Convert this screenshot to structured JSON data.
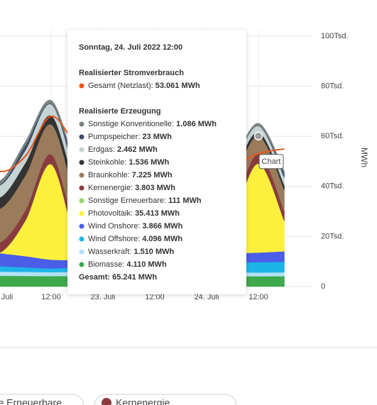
{
  "chart_data": {
    "type": "area",
    "stacked": true,
    "categories": [
      null,
      "Juli",
      null,
      "12:00",
      null,
      "23. Juli",
      null,
      "12:00",
      null,
      "24. Juli",
      null,
      "12:00",
      null
    ],
    "ylim": [
      0,
      100000
    ],
    "yticks": [
      {
        "value": 0,
        "label": "0"
      },
      {
        "value": 20000,
        "label": "20Tsd."
      },
      {
        "value": 40000,
        "label": "40Tsd."
      },
      {
        "value": 60000,
        "label": "60Tsd."
      },
      {
        "value": 80000,
        "label": "80Tsd."
      },
      {
        "value": 100000,
        "label": "100Tsd."
      }
    ],
    "y_label": "MWh",
    "grid": true,
    "hover_index": 11,
    "hover_label": "Chart",
    "tooltip_title": "Sonntag, 24. Juli 2022 12:00",
    "consumption_heading": "Realisierter Stromverbrauch",
    "generation_heading": "Realisierte Erzeugung",
    "total": {
      "value": 65241,
      "label": "Gesamt: 65.241 MWh"
    },
    "series": [
      {
        "name": "Gesamt (Netzlast)",
        "type": "line",
        "color": "#e8561c",
        "values": [
          56000,
          46000,
          52000,
          68000,
          56000,
          48000,
          50000,
          60000,
          54000,
          45000,
          48000,
          53061,
          55000
        ],
        "value_labels": [
          null,
          null,
          null,
          null,
          null,
          null,
          null,
          null,
          null,
          null,
          null,
          "53.061 MWh",
          null
        ]
      },
      {
        "name": "Sonstige Konventionelle",
        "color": "#7b8281",
        "values": [
          1500,
          1500,
          1500,
          1400,
          1500,
          1400,
          1300,
          1200,
          1200,
          1200,
          1200,
          1086,
          1200
        ],
        "value_labels": [
          null,
          null,
          null,
          null,
          null,
          null,
          null,
          null,
          null,
          null,
          null,
          "1.086 MWh",
          null
        ]
      },
      {
        "name": "Pumpspeicher",
        "color": "#3b4a68",
        "values": [
          500,
          300,
          2000,
          200,
          2500,
          500,
          300,
          100,
          1500,
          500,
          200,
          23,
          1500
        ],
        "value_labels": [
          null,
          null,
          null,
          null,
          null,
          null,
          null,
          null,
          null,
          null,
          null,
          "23 MWh",
          null
        ]
      },
      {
        "name": "Erdgas",
        "color": "#c5d3d3",
        "values": [
          5000,
          4800,
          5000,
          4500,
          4800,
          4600,
          4000,
          3000,
          3200,
          3300,
          3200,
          2462,
          3000
        ],
        "value_labels": [
          null,
          null,
          null,
          null,
          null,
          null,
          null,
          null,
          null,
          null,
          null,
          "2.462 MWh",
          null
        ]
      },
      {
        "name": "Steinkohle",
        "color": "#333333",
        "values": [
          5000,
          4500,
          5000,
          3500,
          4500,
          4000,
          3000,
          2000,
          2500,
          2500,
          2500,
          1536,
          2000
        ],
        "value_labels": [
          null,
          null,
          null,
          null,
          null,
          null,
          null,
          null,
          null,
          null,
          null,
          "1.536 MWh",
          null
        ]
      },
      {
        "name": "Braunkohle",
        "color": "#9a7b5c",
        "values": [
          14500,
          13500,
          14000,
          12000,
          13500,
          13000,
          12000,
          9000,
          10000,
          10500,
          11000,
          7225,
          8500
        ],
        "value_labels": [
          null,
          null,
          null,
          null,
          null,
          null,
          null,
          null,
          null,
          null,
          null,
          "7.225 MWh",
          null
        ]
      },
      {
        "name": "Kernenergie",
        "color": "#8a3b3e",
        "values": [
          4000,
          4000,
          4000,
          3900,
          3900,
          3900,
          3900,
          3850,
          3850,
          3850,
          3850,
          3803,
          3800
        ],
        "value_labels": [
          null,
          null,
          null,
          null,
          null,
          null,
          null,
          null,
          null,
          null,
          null,
          "3.803 MWh",
          null
        ]
      },
      {
        "name": "Sonstige Erneuerbare",
        "color": "#8fd36a",
        "values": [
          120,
          120,
          120,
          115,
          120,
          120,
          120,
          115,
          120,
          120,
          115,
          111,
          115
        ],
        "value_labels": [
          null,
          null,
          null,
          null,
          null,
          null,
          null,
          null,
          null,
          null,
          null,
          "111 MWh",
          null
        ]
      },
      {
        "name": "Photovoltaik",
        "color": "#fdf03c",
        "values": [
          3000,
          0,
          14000,
          38000,
          7000,
          0,
          14000,
          36000,
          7000,
          0,
          14000,
          35413,
          12000
        ],
        "value_labels": [
          null,
          null,
          null,
          null,
          null,
          null,
          null,
          null,
          null,
          null,
          null,
          "35.413 MWh",
          null
        ]
      },
      {
        "name": "Wind Onshore",
        "color": "#4a5ee8",
        "values": [
          6000,
          5200,
          4500,
          3500,
          3000,
          2800,
          2600,
          2800,
          3200,
          3600,
          3700,
          3866,
          4200
        ],
        "value_labels": [
          null,
          null,
          null,
          null,
          null,
          null,
          null,
          null,
          null,
          null,
          null,
          "3.866 MWh",
          null
        ]
      },
      {
        "name": "Wind Offshore",
        "color": "#1db4e8",
        "values": [
          2500,
          2200,
          1800,
          1500,
          1800,
          2200,
          2600,
          3000,
          3400,
          3800,
          3900,
          4096,
          4200
        ],
        "value_labels": [
          null,
          null,
          null,
          null,
          null,
          null,
          null,
          null,
          null,
          null,
          null,
          "4.096 MWh",
          null
        ]
      },
      {
        "name": "Wasserkraft",
        "color": "#b3e2f7",
        "values": [
          1650,
          1650,
          1600,
          1550,
          1600,
          1600,
          1550,
          1500,
          1550,
          1550,
          1550,
          1510,
          1520
        ],
        "value_labels": [
          null,
          null,
          null,
          null,
          null,
          null,
          null,
          null,
          null,
          null,
          null,
          "1.510 MWh",
          null
        ]
      },
      {
        "name": "Biomasse",
        "color": "#3ea94b",
        "values": [
          4300,
          4300,
          4250,
          4200,
          4250,
          4250,
          4200,
          4150,
          4200,
          4150,
          4150,
          4110,
          4150
        ],
        "value_labels": [
          null,
          null,
          null,
          null,
          null,
          null,
          null,
          null,
          null,
          null,
          null,
          "4.110 MWh",
          null
        ]
      }
    ]
  }
}
